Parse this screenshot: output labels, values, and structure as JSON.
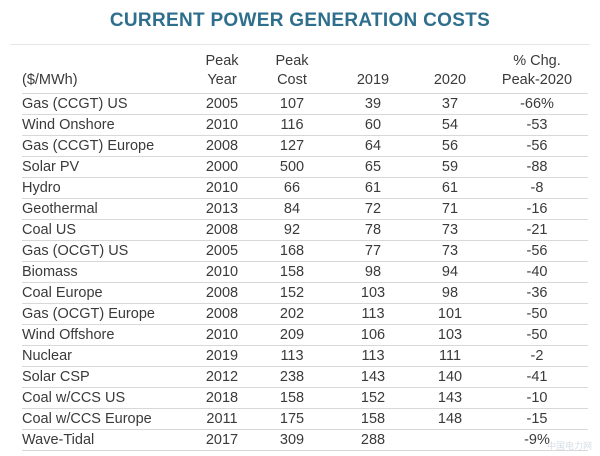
{
  "title": "CURRENT POWER GENERATION COSTS",
  "headers": {
    "name": [
      "",
      "($/MWh)"
    ],
    "peak_year": [
      "Peak",
      "Year"
    ],
    "peak_cost": [
      "Peak",
      "Cost"
    ],
    "y2019": [
      "",
      "2019"
    ],
    "y2020": [
      "",
      "2020"
    ],
    "change": [
      "% Chg.",
      "Peak-2020"
    ]
  },
  "rows": [
    {
      "name": "Gas (CCGT) US",
      "peak_year": "2005",
      "peak_cost": "107",
      "y2019": "39",
      "y2020": "37",
      "change": "-66%"
    },
    {
      "name": "Wind Onshore",
      "peak_year": "2010",
      "peak_cost": "116",
      "y2019": "60",
      "y2020": "54",
      "change": "-53"
    },
    {
      "name": "Gas (CCGT) Europe",
      "peak_year": "2008",
      "peak_cost": "127",
      "y2019": "64",
      "y2020": "56",
      "change": "-56"
    },
    {
      "name": "Solar PV",
      "peak_year": "2000",
      "peak_cost": "500",
      "y2019": "65",
      "y2020": "59",
      "change": "-88"
    },
    {
      "name": "Hydro",
      "peak_year": "2010",
      "peak_cost": "66",
      "y2019": "61",
      "y2020": "61",
      "change": "-8"
    },
    {
      "name": "Geothermal",
      "peak_year": "2013",
      "peak_cost": "84",
      "y2019": "72",
      "y2020": "71",
      "change": "-16"
    },
    {
      "name": "Coal US",
      "peak_year": "2008",
      "peak_cost": "92",
      "y2019": "78",
      "y2020": "73",
      "change": "-21"
    },
    {
      "name": "Gas (OCGT) US",
      "peak_year": "2005",
      "peak_cost": "168",
      "y2019": "77",
      "y2020": "73",
      "change": "-56"
    },
    {
      "name": "Biomass",
      "peak_year": "2010",
      "peak_cost": "158",
      "y2019": "98",
      "y2020": "94",
      "change": "-40"
    },
    {
      "name": "Coal Europe",
      "peak_year": "2008",
      "peak_cost": "152",
      "y2019": "103",
      "y2020": "98",
      "change": "-36"
    },
    {
      "name": "Gas (OCGT) Europe",
      "peak_year": "2008",
      "peak_cost": "202",
      "y2019": "113",
      "y2020": "101",
      "change": "-50"
    },
    {
      "name": "Wind Offshore",
      "peak_year": "2010",
      "peak_cost": "209",
      "y2019": "106",
      "y2020": "103",
      "change": "-50"
    },
    {
      "name": "Nuclear",
      "peak_year": "2019",
      "peak_cost": "113",
      "y2019": "113",
      "y2020": "111",
      "change": "-2"
    },
    {
      "name": "Solar CSP",
      "peak_year": "2012",
      "peak_cost": "238",
      "y2019": "143",
      "y2020": "140",
      "change": "-41"
    },
    {
      "name": "Coal w/CCS US",
      "peak_year": "2018",
      "peak_cost": "158",
      "y2019": "152",
      "y2020": "143",
      "change": "-10"
    },
    {
      "name": "Coal w/CCS Europe",
      "peak_year": "2011",
      "peak_cost": "175",
      "y2019": "158",
      "y2020": "148",
      "change": "-15"
    },
    {
      "name": "Wave-Tidal",
      "peak_year": "2017",
      "peak_cost": "309",
      "y2019": "288",
      "y2020": "",
      "change": "-9%"
    }
  ],
  "watermark": "中国电力网"
}
